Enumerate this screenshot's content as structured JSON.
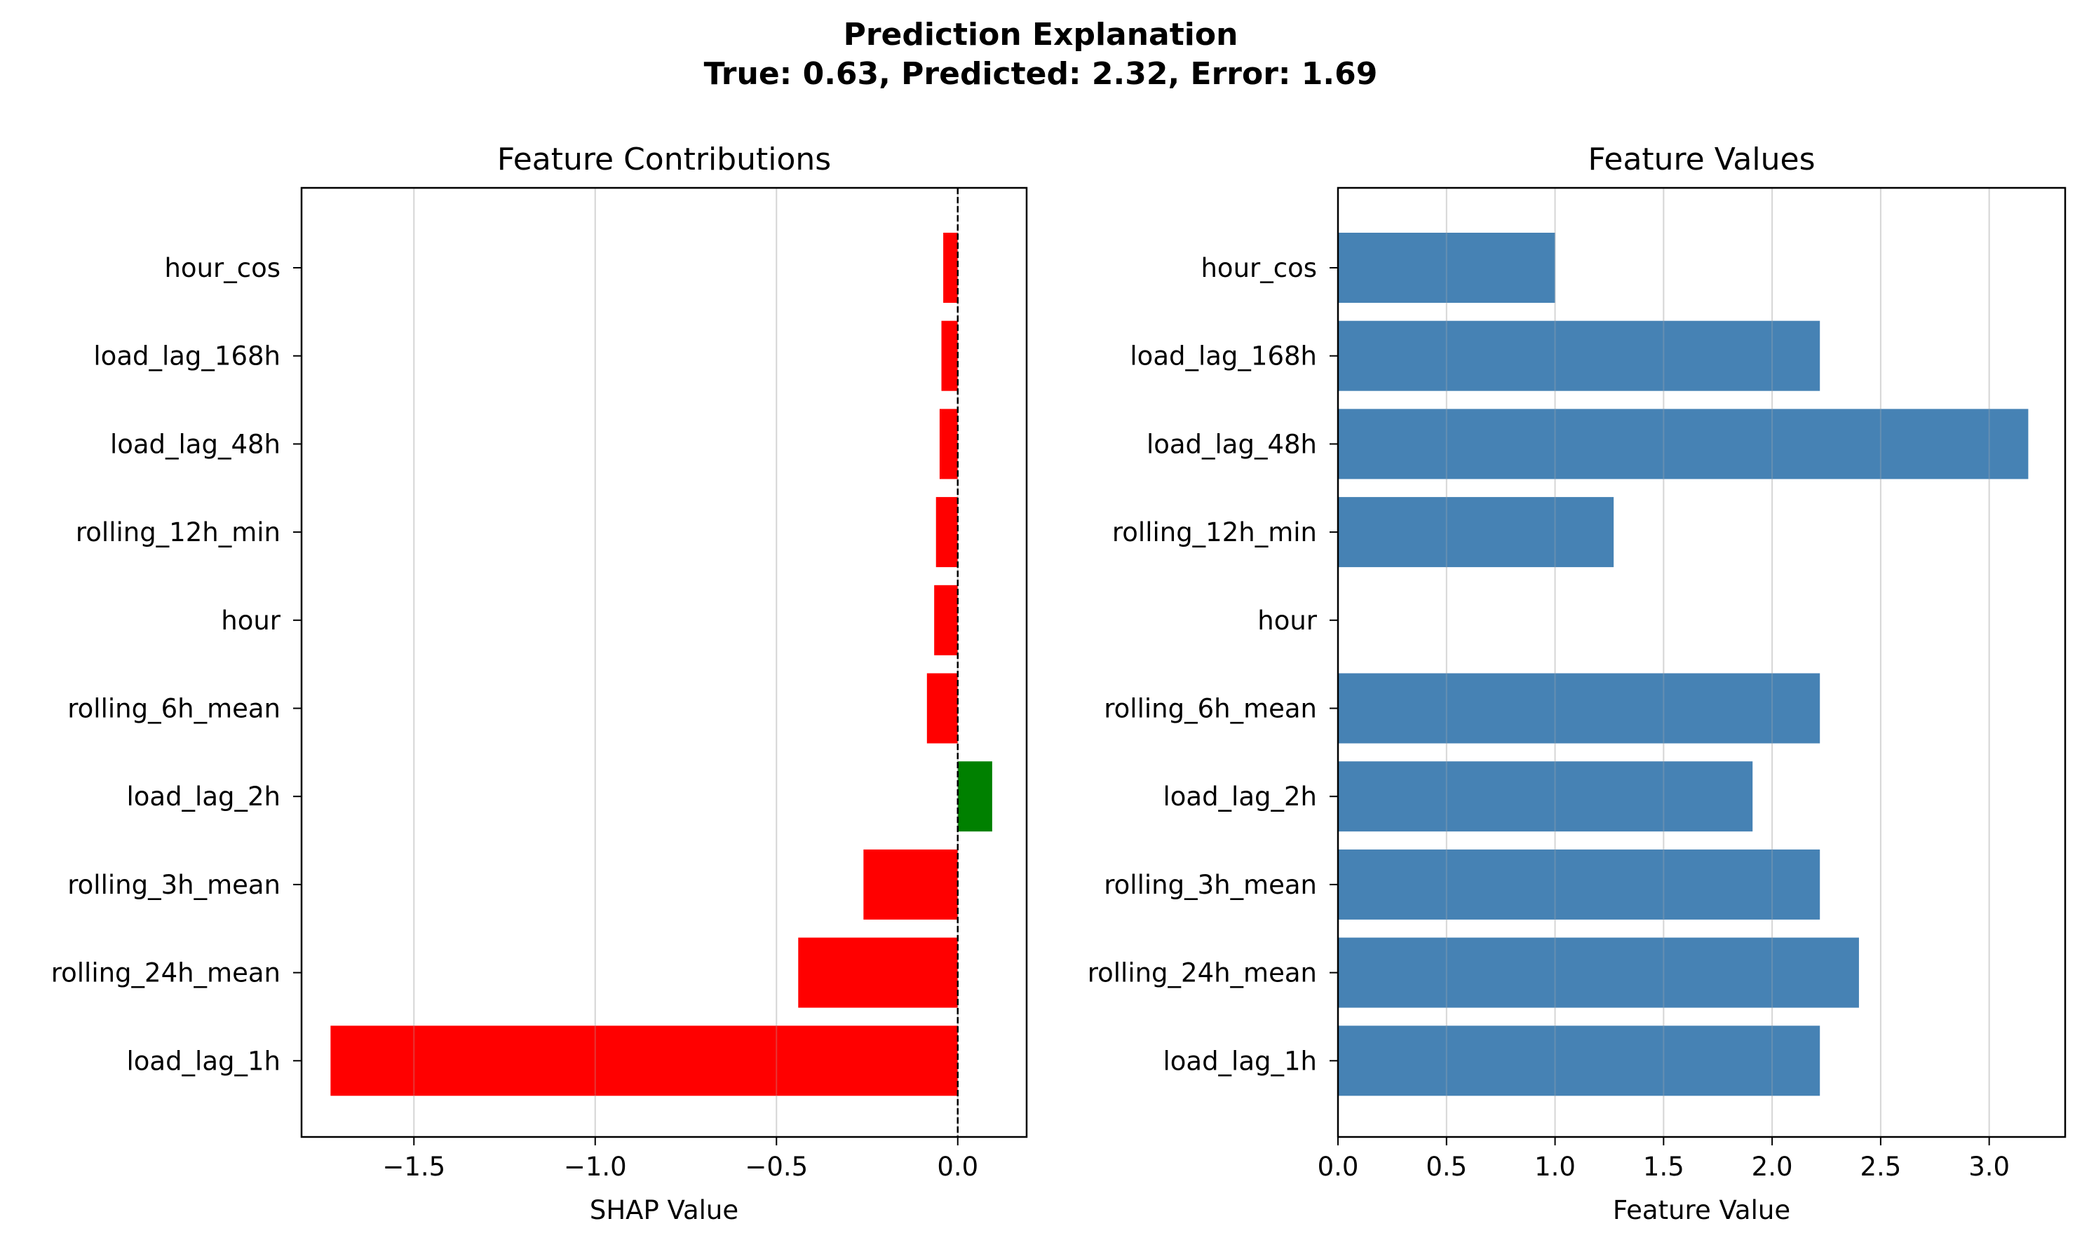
{
  "figure": {
    "title_line1": "Prediction Explanation",
    "title_line2": "True: 0.63, Predicted: 2.32, Error: 1.69"
  },
  "chart_data": [
    {
      "type": "bar",
      "orientation": "horizontal",
      "title": "Feature Contributions",
      "xlabel": "SHAP Value",
      "ylabel": "",
      "categories": [
        "hour_cos",
        "load_lag_168h",
        "load_lag_48h",
        "rolling_12h_min",
        "hour",
        "rolling_6h_mean",
        "load_lag_2h",
        "rolling_3h_mean",
        "rolling_24h_mean",
        "load_lag_1h"
      ],
      "values": [
        -0.04,
        -0.045,
        -0.05,
        -0.06,
        -0.065,
        -0.085,
        0.095,
        -0.26,
        -0.44,
        -1.73
      ],
      "bar_colors": [
        "#ff0000",
        "#ff0000",
        "#ff0000",
        "#ff0000",
        "#ff0000",
        "#ff0000",
        "#008000",
        "#ff0000",
        "#ff0000",
        "#ff0000"
      ],
      "xlim": [
        -1.81,
        0.19
      ],
      "xticks": [
        -1.5,
        -1.0,
        -0.5,
        0.0
      ],
      "xtick_labels": [
        "−1.5",
        "−1.0",
        "−0.5",
        "0.0"
      ],
      "grid": "vertical",
      "zero_line": "dashed"
    },
    {
      "type": "bar",
      "orientation": "horizontal",
      "title": "Feature Values",
      "xlabel": "Feature Value",
      "ylabel": "",
      "categories": [
        "hour_cos",
        "load_lag_168h",
        "load_lag_48h",
        "rolling_12h_min",
        "hour",
        "rolling_6h_mean",
        "load_lag_2h",
        "rolling_3h_mean",
        "rolling_24h_mean",
        "load_lag_1h"
      ],
      "values": [
        1.0,
        2.22,
        3.18,
        1.27,
        0.0,
        2.22,
        1.91,
        2.22,
        2.4,
        2.22
      ],
      "color": "#4682b4",
      "xlim": [
        0,
        3.35
      ],
      "xticks": [
        0.0,
        0.5,
        1.0,
        1.5,
        2.0,
        2.5,
        3.0
      ],
      "xtick_labels": [
        "0.0",
        "0.5",
        "1.0",
        "1.5",
        "2.0",
        "2.5",
        "3.0"
      ],
      "grid": "vertical"
    }
  ]
}
